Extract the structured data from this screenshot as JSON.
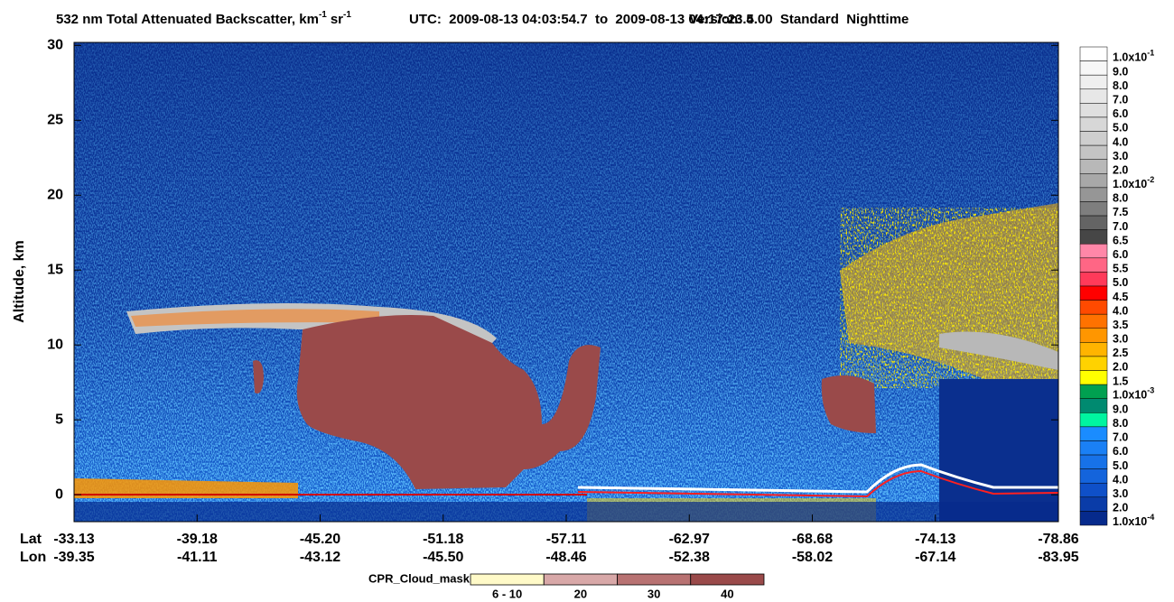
{
  "chart_data": {
    "type": "curtain",
    "title": {
      "text": "532 nm Total Attenuated Backscatter, km",
      "sup1": "-1",
      "unit2": "sr",
      "sup2": "-1"
    },
    "time_range": "UTC:  2009-08-13 04:03:54.7  to  2009-08-13 04:17:23.4",
    "version": "Version: 5.00  Standard  Nighttime",
    "y_label": "Altitude, km",
    "ylim": [
      -1.8,
      30.2
    ],
    "yticks": [
      0,
      5,
      10,
      15,
      20,
      25,
      30
    ],
    "x_rows": [
      {
        "name": "Lat",
        "labels": [
          "-33.13",
          "-39.18",
          "-45.20",
          "-51.18",
          "-57.11",
          "-62.97",
          "-68.68",
          "-74.13",
          "-78.86"
        ]
      },
      {
        "name": "Lon",
        "labels": [
          "-39.35",
          "-41.11",
          "-43.12",
          "-45.50",
          "-48.46",
          "-52.38",
          "-58.02",
          "-67.14",
          "-83.95"
        ]
      }
    ],
    "colorbar": [
      {
        "label": {
          "base": "1.0x10",
          "exp": "-1"
        },
        "color": "#ffffff"
      },
      {
        "label": "9.0",
        "color": "#f7f7f7"
      },
      {
        "label": "8.0",
        "color": "#efefef"
      },
      {
        "label": "7.0",
        "color": "#e7e7e7"
      },
      {
        "label": "6.0",
        "color": "#dfdfdf"
      },
      {
        "label": "5.0",
        "color": "#d7d7d7"
      },
      {
        "label": "4.0",
        "color": "#cecece"
      },
      {
        "label": "3.0",
        "color": "#c4c4c4"
      },
      {
        "label": "2.0",
        "color": "#b8b8b8"
      },
      {
        "label": {
          "base": "1.0x10",
          "exp": "-2"
        },
        "color": "#a8a8a8"
      },
      {
        "label": "8.0",
        "color": "#969696"
      },
      {
        "label": "7.5",
        "color": "#7e7e7e"
      },
      {
        "label": "7.0",
        "color": "#646464"
      },
      {
        "label": "6.5",
        "color": "#464646"
      },
      {
        "label": "6.0",
        "color": "#ff87a8"
      },
      {
        "label": "5.5",
        "color": "#ff6685"
      },
      {
        "label": "5.0",
        "color": "#ff3a5a"
      },
      {
        "label": "4.5",
        "color": "#ff0000"
      },
      {
        "label": "4.0",
        "color": "#ff4a00"
      },
      {
        "label": "3.5",
        "color": "#ff7200"
      },
      {
        "label": "3.0",
        "color": "#ff9600"
      },
      {
        "label": "2.5",
        "color": "#ffb400"
      },
      {
        "label": "2.0",
        "color": "#ffd200"
      },
      {
        "label": "1.5",
        "color": "#ffff00"
      },
      {
        "label": {
          "base": "1.0x10",
          "exp": "-3"
        },
        "color": "#00a050"
      },
      {
        "label": "9.0",
        "color": "#008a70"
      },
      {
        "label": "8.0",
        "color": "#00f5a0"
      },
      {
        "label": "7.0",
        "color": "#1a8cff"
      },
      {
        "label": "6.0",
        "color": "#1a80f5"
      },
      {
        "label": "5.0",
        "color": "#1772e8"
      },
      {
        "label": "4.0",
        "color": "#1464dc"
      },
      {
        "label": "3.0",
        "color": "#0f50c8"
      },
      {
        "label": "2.0",
        "color": "#0a3ca8"
      },
      {
        "label": {
          "base": "1.0x10",
          "exp": "-4"
        },
        "color": "#062a8c"
      }
    ],
    "cpr_legend": {
      "title": "CPR_Cloud_mask",
      "items": [
        {
          "label": "6 - 10",
          "color": "#fffac8"
        },
        {
          "label": "20",
          "color": "#d8a8a8"
        },
        {
          "label": "30",
          "color": "#b87272"
        },
        {
          "label": "40",
          "color": "#9a4a4a"
        }
      ]
    }
  }
}
